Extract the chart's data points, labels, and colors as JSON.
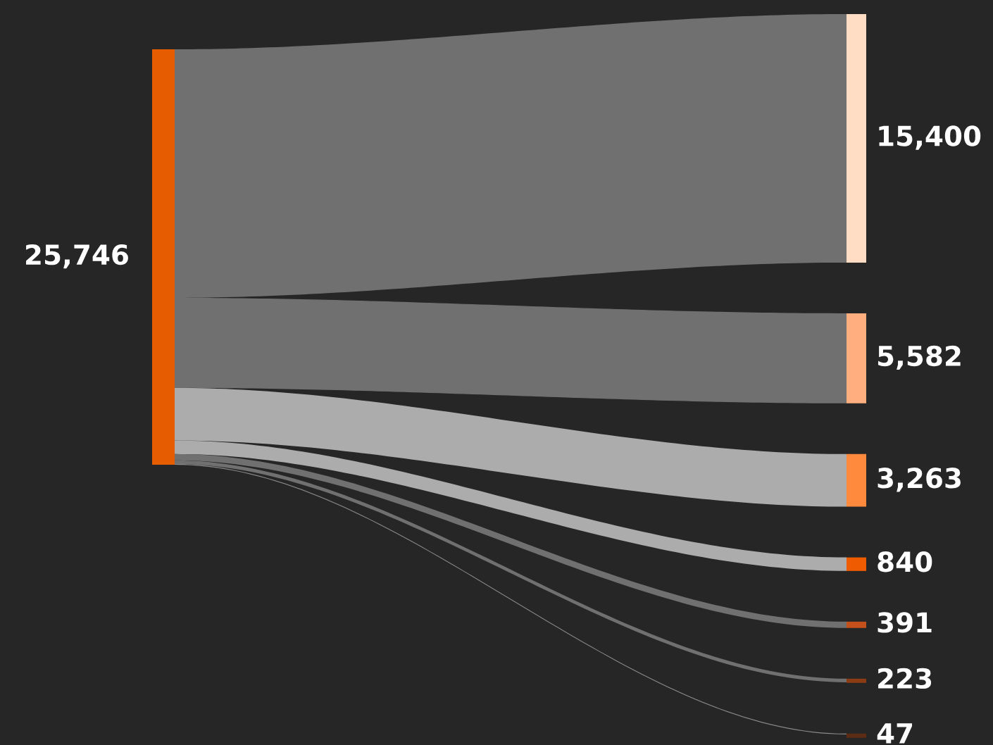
{
  "chart_data": {
    "type": "other",
    "values": [
      15400,
      5582,
      3263,
      840,
      391,
      223,
      47
    ],
    "colors": [
      "#ffdcc4",
      "#ffae80",
      "#ff8a3d",
      "#ef5b00",
      "#c4501c",
      "#8c3c14",
      "#5c2c14"
    ],
    "totals": [
      "25,746"
    ],
    "value_labels": [
      "15,400",
      "5,582",
      "3,263",
      "840",
      "391",
      "223",
      "47"
    ]
  }
}
